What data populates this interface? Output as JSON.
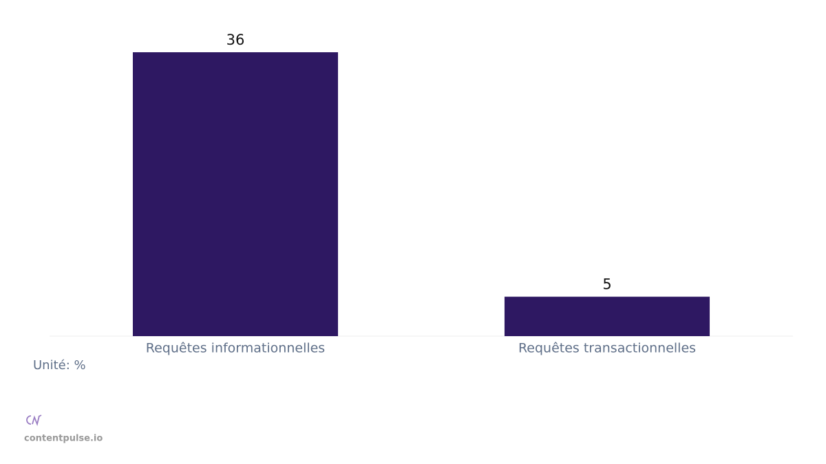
{
  "chart_data": {
    "type": "bar",
    "categories": [
      "Requêtes informationnelles",
      "Requêtes transactionnelles"
    ],
    "values": [
      36,
      5
    ],
    "color": "#2e1862",
    "unit_note": "Unité: %",
    "source": "contentpulse.io"
  }
}
